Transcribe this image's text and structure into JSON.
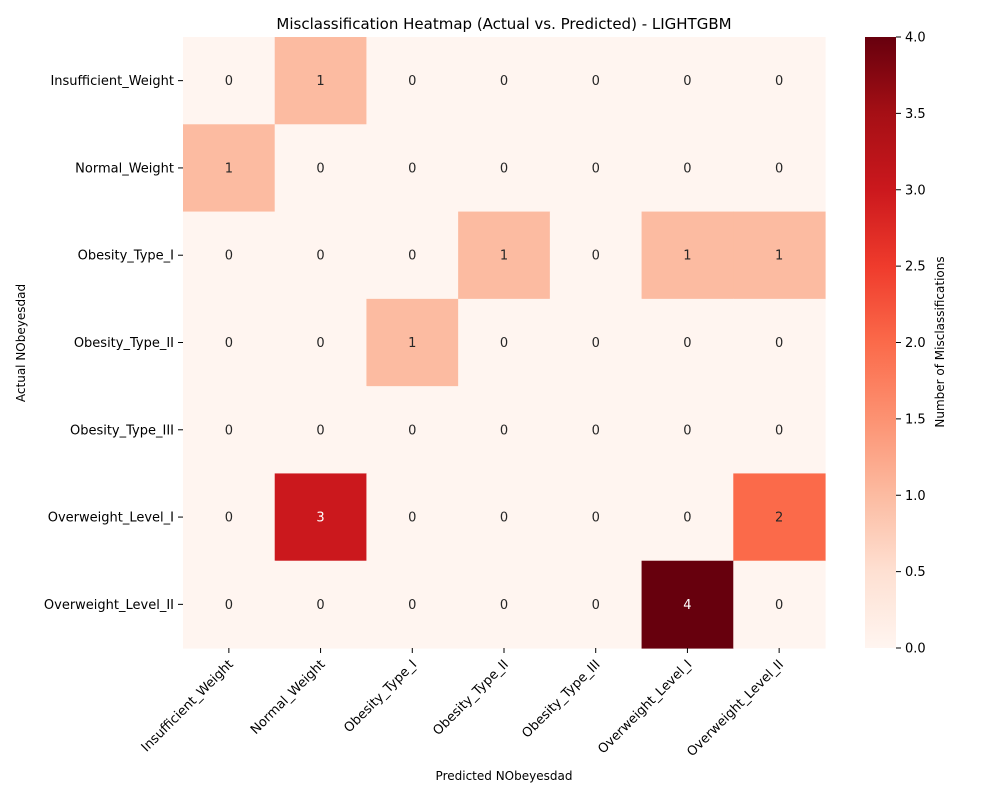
{
  "chart_data": {
    "type": "heatmap",
    "title": "Misclassification Heatmap (Actual vs. Predicted) - LIGHTGBM",
    "xlabel": "Predicted NObeyesdad",
    "ylabel": "Actual NObeyesdad",
    "x_categories": [
      "Insufficient_Weight",
      "Normal_Weight",
      "Obesity_Type_I",
      "Obesity_Type_II",
      "Obesity_Type_III",
      "Overweight_Level_I",
      "Overweight_Level_II"
    ],
    "y_categories": [
      "Insufficient_Weight",
      "Normal_Weight",
      "Obesity_Type_I",
      "Obesity_Type_II",
      "Obesity_Type_III",
      "Overweight_Level_I",
      "Overweight_Level_II"
    ],
    "values": [
      [
        0,
        1,
        0,
        0,
        0,
        0,
        0
      ],
      [
        1,
        0,
        0,
        0,
        0,
        0,
        0
      ],
      [
        0,
        0,
        0,
        1,
        0,
        1,
        1
      ],
      [
        0,
        0,
        1,
        0,
        0,
        0,
        0
      ],
      [
        0,
        0,
        0,
        0,
        0,
        0,
        0
      ],
      [
        0,
        3,
        0,
        0,
        0,
        0,
        2
      ],
      [
        0,
        0,
        0,
        0,
        0,
        4,
        0
      ]
    ],
    "colorscale": "Reds",
    "color_range": [
      0,
      4
    ],
    "colorbar": {
      "label": "Number of Misclassifications",
      "ticks": [
        "0.0",
        "0.5",
        "1.0",
        "1.5",
        "2.0",
        "2.5",
        "3.0",
        "3.5",
        "4.0"
      ]
    },
    "annotations": true,
    "grid": false
  }
}
